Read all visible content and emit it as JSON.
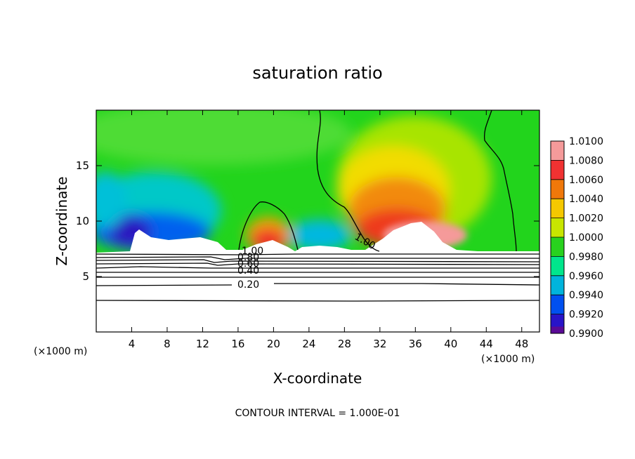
{
  "chart_data": {
    "type": "contour",
    "title": "saturation ratio",
    "xlabel": "X-coordinate",
    "ylabel": "Z-coordinate",
    "x_unit": "(×1000 m)",
    "x_unit_right": "(×1000 m)",
    "x_ticks": [
      4,
      8,
      12,
      16,
      20,
      24,
      28,
      32,
      36,
      40,
      44,
      48
    ],
    "y_ticks": [
      5,
      10,
      15
    ],
    "xlim": [
      0,
      50
    ],
    "ylim": [
      0,
      20
    ],
    "footer": "CONTOUR INTERVAL = 1.000E-01",
    "colorbar": {
      "labels": [
        "1.0100",
        "1.0080",
        "1.0060",
        "1.0040",
        "1.0020",
        "1.0000",
        "0.9980",
        "0.9960",
        "0.9940",
        "0.9920",
        "0.9900"
      ],
      "colors": [
        "#f59a9a",
        "#f03232",
        "#f0780a",
        "#f5c800",
        "#c8e600",
        "#28d21e",
        "#00e68c",
        "#00b4dc",
        "#0050f0",
        "#2814c8",
        "#5a0a96"
      ]
    },
    "contour_labels": [
      "1.00",
      "1.00",
      "0.80",
      "0.60",
      "0.40",
      "0.20"
    ]
  }
}
